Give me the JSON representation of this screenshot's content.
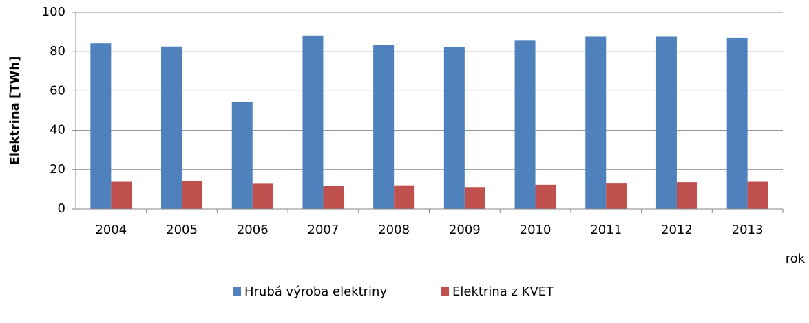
{
  "chart_data": {
    "type": "bar",
    "categories": [
      "2004",
      "2005",
      "2006",
      "2007",
      "2008",
      "2009",
      "2010",
      "2011",
      "2012",
      "2013"
    ],
    "series": [
      {
        "name": "Hrubá výroba elektriny",
        "color": "#4f81bd",
        "values": [
          84.2,
          82.6,
          54.5,
          88.2,
          83.5,
          82.2,
          85.9,
          87.6,
          87.6,
          87.1
        ]
      },
      {
        "name": "Elektrina z KVET",
        "color": "#c0504d",
        "values": [
          13.8,
          14.0,
          12.8,
          11.6,
          12.0,
          11.1,
          12.3,
          12.9,
          13.6,
          13.8
        ]
      }
    ],
    "ylabel": "Elektrina [TWh]",
    "xlabel": "rok",
    "ylim": [
      0,
      100
    ],
    "yticks": [
      0,
      20,
      40,
      60,
      80,
      100
    ],
    "grid": true,
    "legend": "bottom"
  }
}
